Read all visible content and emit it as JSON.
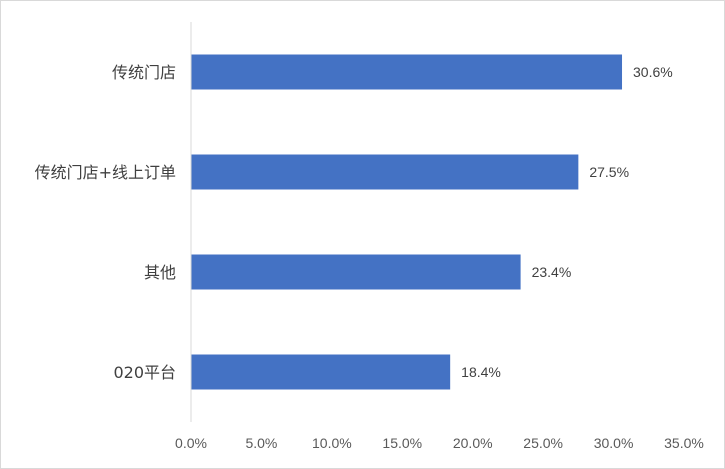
{
  "chart_data": {
    "type": "bar",
    "orientation": "horizontal",
    "categories": [
      "传统门店",
      "传统门店+线上订单",
      "其他",
      "020平台"
    ],
    "values": [
      30.6,
      27.5,
      23.4,
      18.4
    ],
    "value_labels": [
      "30.6%",
      "27.5%",
      "23.4%",
      "18.4%"
    ],
    "xlim": [
      0,
      35
    ],
    "ticks": [
      0,
      5,
      10,
      15,
      20,
      25,
      30,
      35
    ],
    "tick_labels": [
      "0.0%",
      "5.0%",
      "10.0%",
      "15.0%",
      "20.0%",
      "25.0%",
      "30.0%",
      "35.0%"
    ],
    "title": "",
    "xlabel": "",
    "ylabel": "",
    "grid": false,
    "legend": "none",
    "bar_color": "#4472c4",
    "axis_color": "#d9d9d9"
  }
}
